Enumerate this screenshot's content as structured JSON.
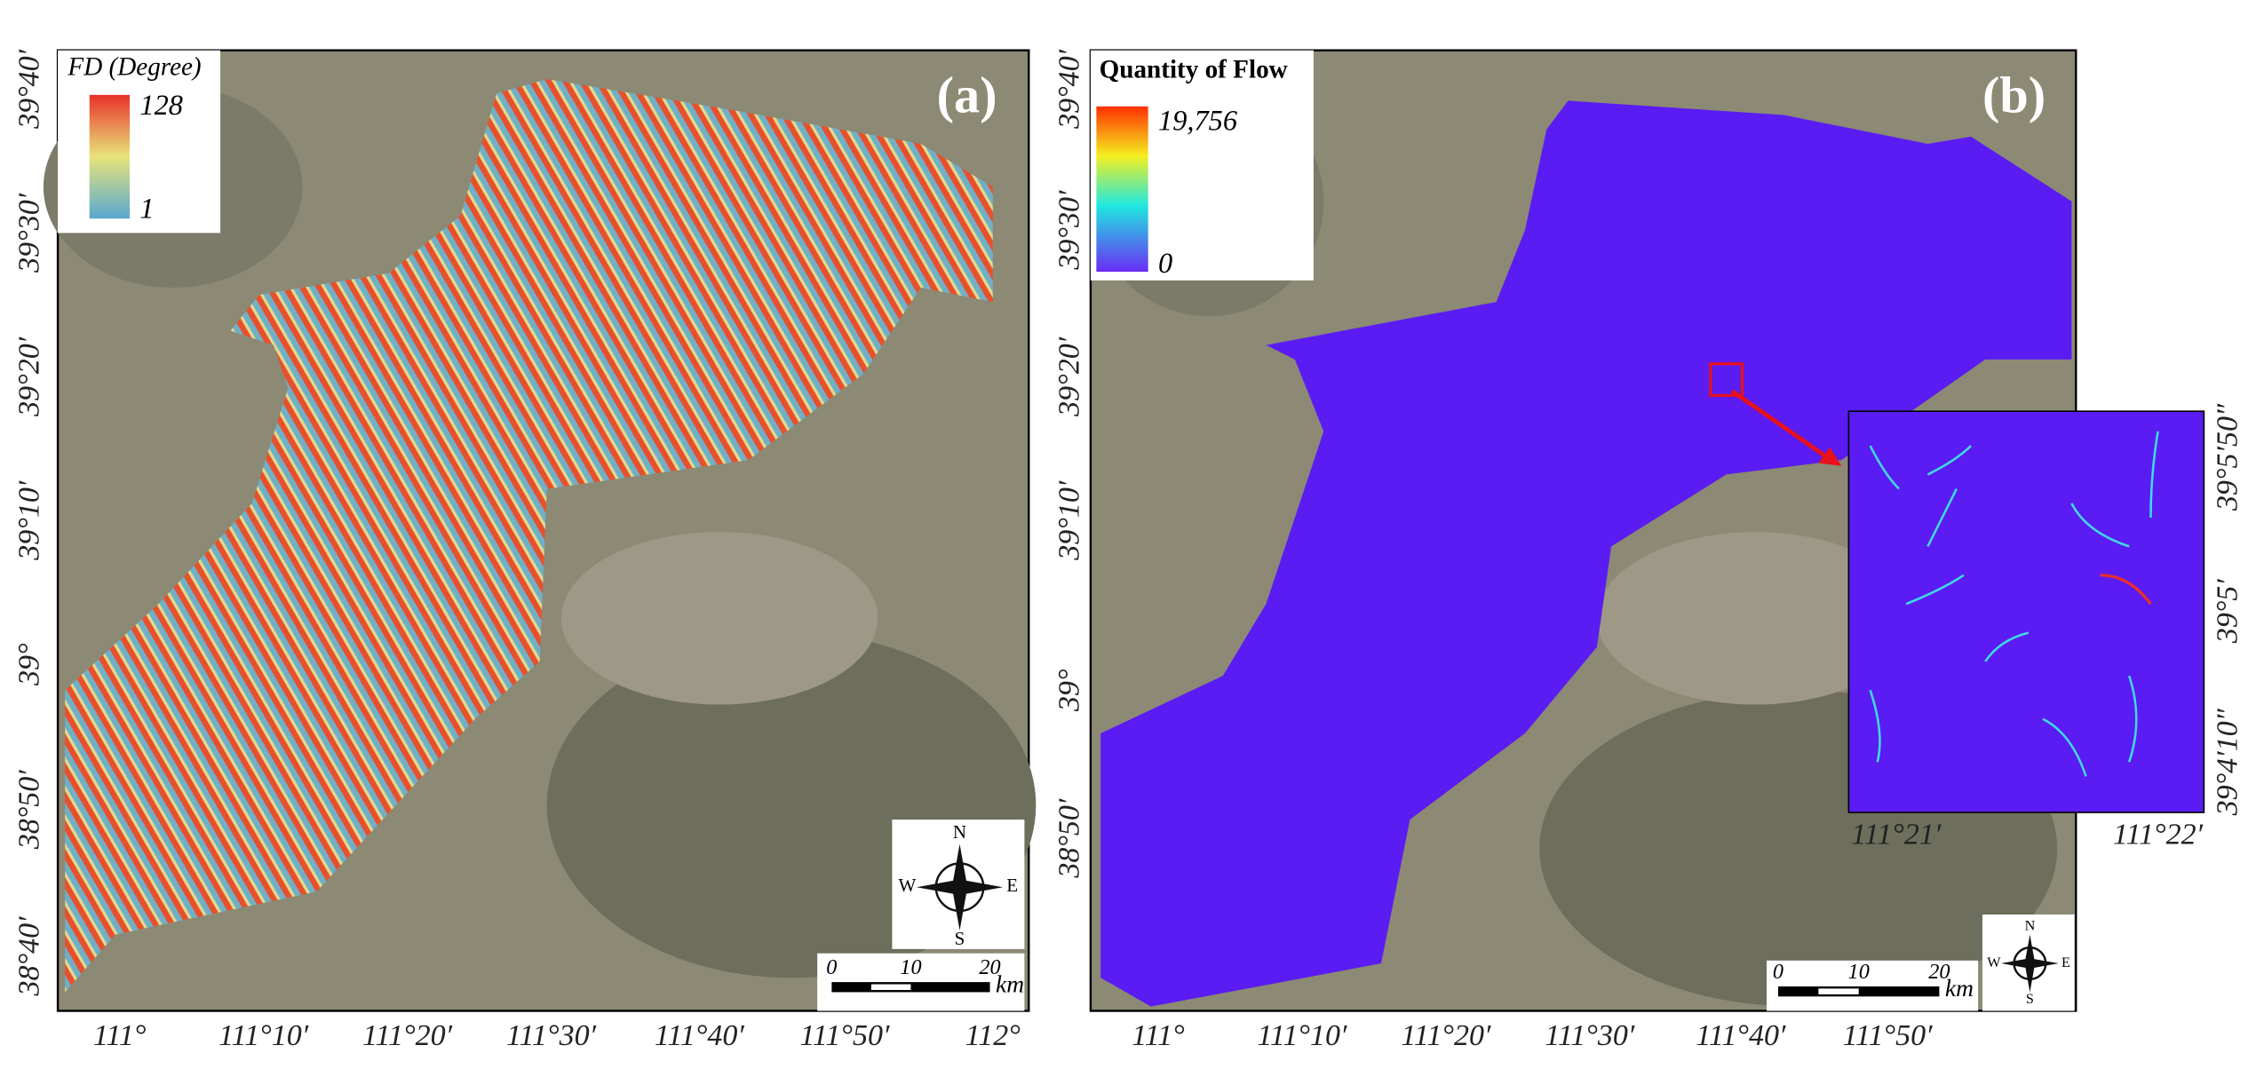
{
  "panel_a": {
    "label": "(a)",
    "legend": {
      "title": "FD (Degree)",
      "max": "128",
      "min": "1"
    },
    "lat_labels": [
      "39°40′",
      "39°30′",
      "39°20′",
      "39°10′",
      "39°",
      "38°50′",
      "38°40′"
    ],
    "lon_labels": [
      "111°",
      "111°10′",
      "111°20′",
      "111°30′",
      "111°40′",
      "111°50′",
      "112°"
    ],
    "scale_bar": {
      "ticks": [
        "0",
        "10",
        "20"
      ],
      "unit": "km"
    },
    "compass": [
      "N",
      "E",
      "S",
      "W"
    ]
  },
  "panel_b": {
    "label": "(b)",
    "legend": {
      "title": "Quantity of Flow",
      "max": "19,756",
      "min": "0"
    },
    "lat_labels": [
      "39°40′",
      "39°30′",
      "39°20′",
      "39°10′",
      "39°",
      "38°50′"
    ],
    "lon_labels": [
      "111°",
      "111°10′",
      "111°20′",
      "111°30′",
      "111°40′",
      "111°50′"
    ],
    "inset": {
      "lat_labels": [
        "39°5′50″",
        "39°5′",
        "39°4′10″"
      ],
      "lon_labels": [
        "111°21′",
        "111°22′"
      ]
    },
    "scale_bar": {
      "ticks": [
        "0",
        "10",
        "20"
      ],
      "unit": "km"
    },
    "compass": [
      "N",
      "E",
      "S",
      "W"
    ]
  }
}
